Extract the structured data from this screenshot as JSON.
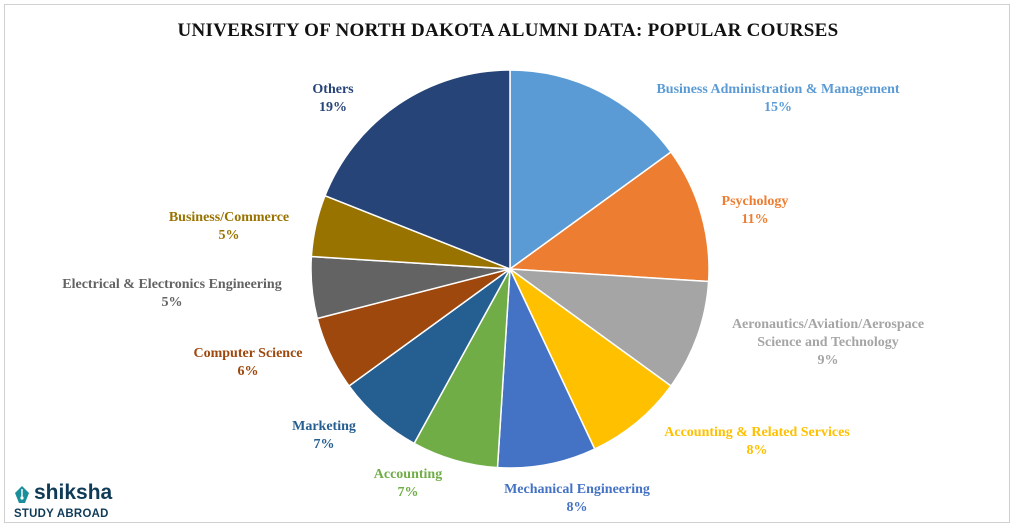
{
  "chart_data": {
    "type": "pie",
    "title": "UNIVERSITY  OF NORTH DAKOTA ALUMNI  DATA:  POPULAR COURSES",
    "slices": [
      {
        "label_lines": [
          "Business Administration  & Management"
        ],
        "pct_text": "15%",
        "value": 15,
        "color": "#5b9bd5"
      },
      {
        "label_lines": [
          "Psychology"
        ],
        "pct_text": "11%",
        "value": 11,
        "color": "#ed7d31"
      },
      {
        "label_lines": [
          "Aeronautics/Aviation/Aerospace",
          "Science and Technology"
        ],
        "pct_text": "9%",
        "value": 9,
        "color": "#a5a5a5"
      },
      {
        "label_lines": [
          "Accounting  & Related Services"
        ],
        "pct_text": "8%",
        "value": 8,
        "color": "#ffc000"
      },
      {
        "label_lines": [
          "Mechanical Engineering"
        ],
        "pct_text": "8%",
        "value": 8,
        "color": "#4472c4"
      },
      {
        "label_lines": [
          "Accounting"
        ],
        "pct_text": "7%",
        "value": 7,
        "color": "#70ad47"
      },
      {
        "label_lines": [
          "Marketing"
        ],
        "pct_text": "7%",
        "value": 7,
        "color": "#255e91"
      },
      {
        "label_lines": [
          "Computer  Science"
        ],
        "pct_text": "6%",
        "value": 6,
        "color": "#9e480e"
      },
      {
        "label_lines": [
          "Electrical  & Electronics  Engineering"
        ],
        "pct_text": "5%",
        "value": 5,
        "color": "#636363"
      },
      {
        "label_lines": [
          "Business/Commerce"
        ],
        "pct_text": "5%",
        "value": 5,
        "color": "#997300"
      },
      {
        "label_lines": [
          "Others"
        ],
        "pct_text": "19%",
        "value": 19,
        "color": "#264478"
      }
    ]
  },
  "logo": {
    "brand": "shiksha",
    "sub": "STUDY ABROAD",
    "color": "#0f3b57"
  }
}
